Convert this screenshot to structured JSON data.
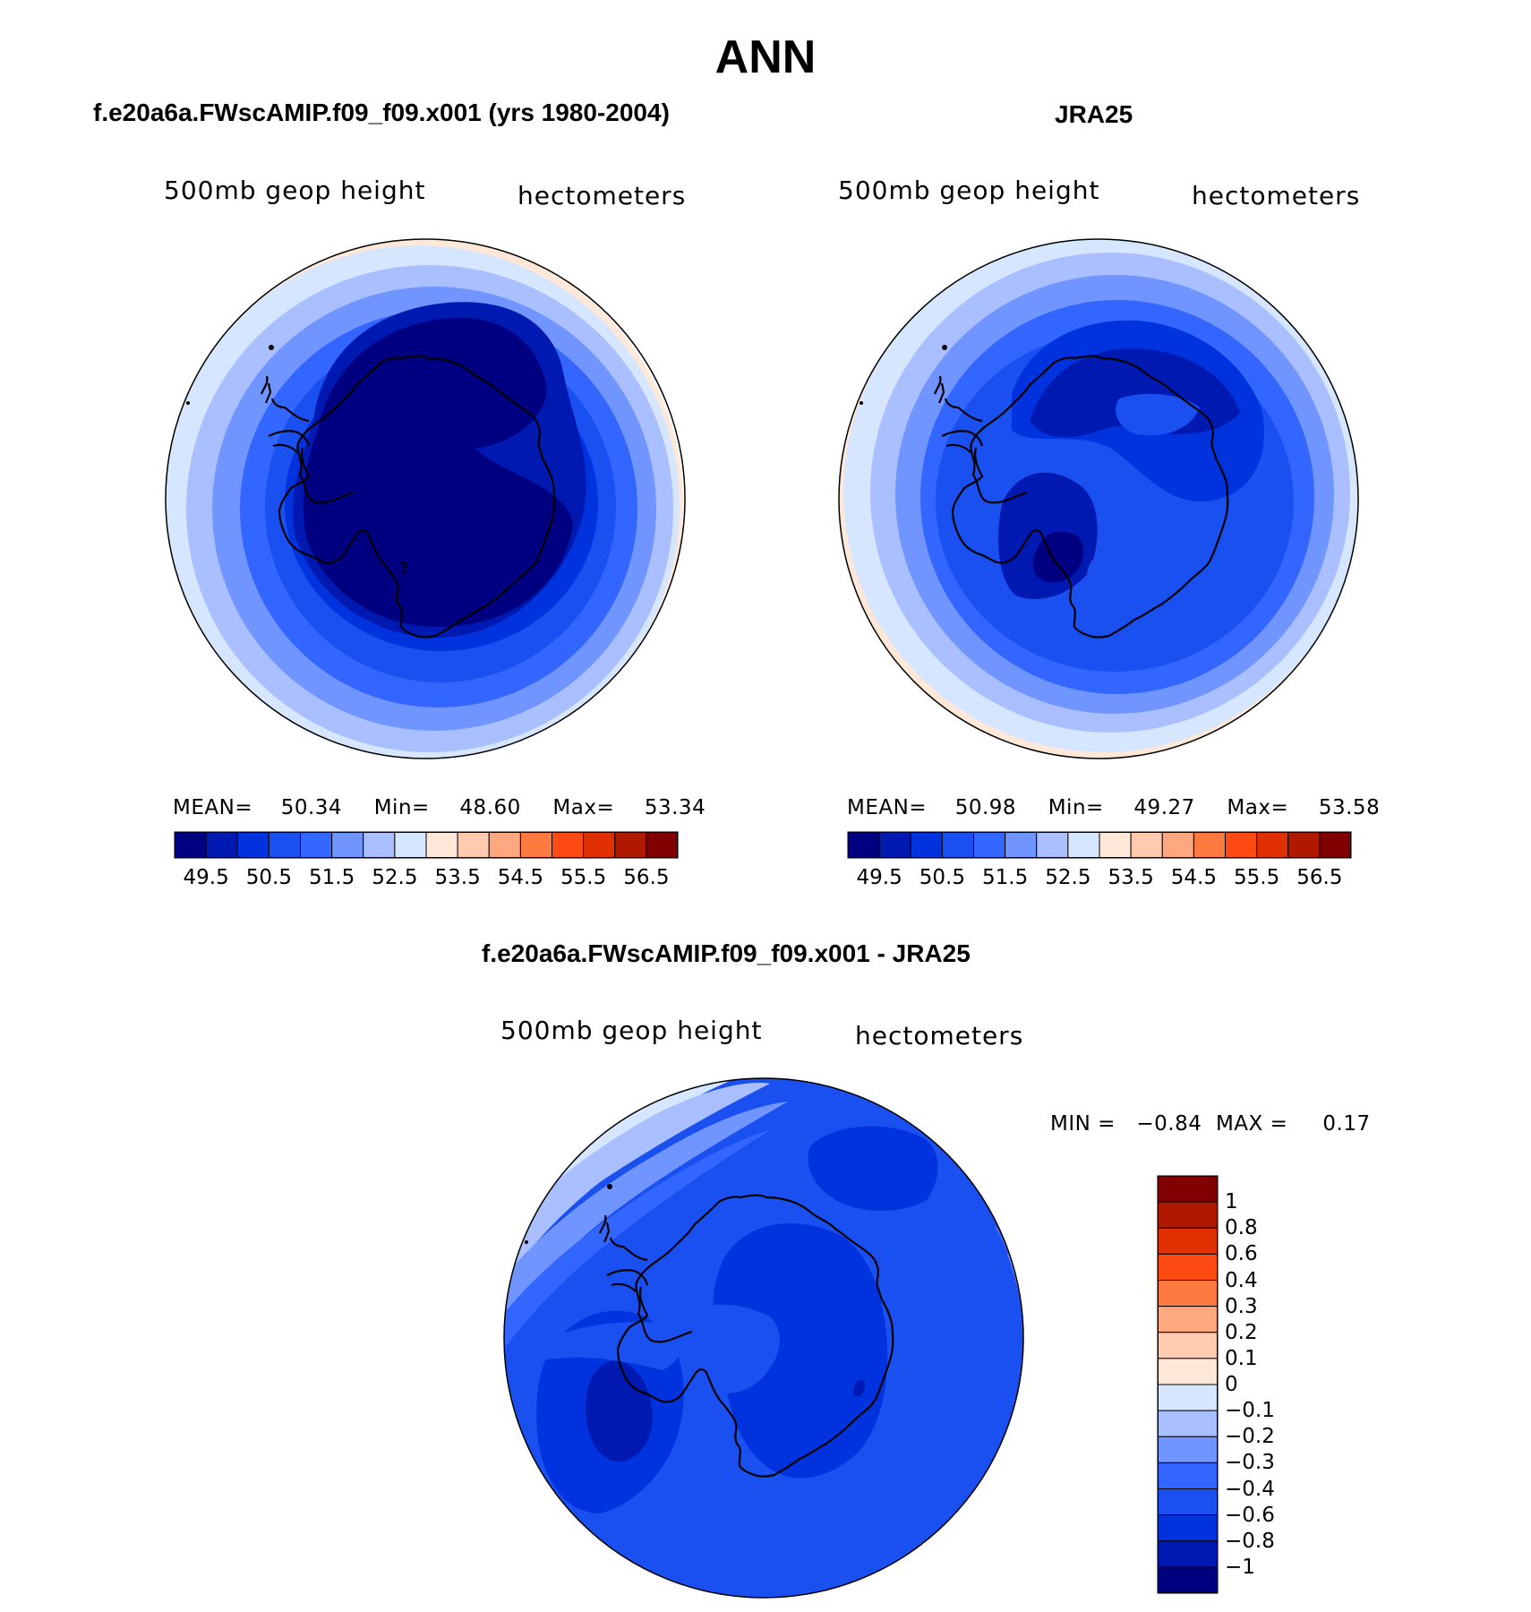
{
  "title": "ANN",
  "panels": {
    "model": {
      "title": "f.e20a6a.FWscAMIP.f09_f09.x001 (yrs 1980-2004)",
      "variable_label": "500mb geop height",
      "units_label": "hectometers",
      "mean_label": "MEAN=",
      "mean_value": "50.34",
      "min_label": "Min=",
      "min_value": "48.60",
      "max_label": "Max=",
      "max_value": "53.34"
    },
    "obs": {
      "title": "JRA25",
      "variable_label": "500mb geop height",
      "units_label": "hectometers",
      "mean_label": "MEAN=",
      "mean_value": "50.98",
      "min_label": "Min=",
      "min_value": "49.27",
      "max_label": "Max=",
      "max_value": "53.58"
    },
    "diff": {
      "title": "f.e20a6a.FWscAMIP.f09_f09.x001 - JRA25",
      "variable_label": "500mb geop height",
      "units_label": "hectometers",
      "minmax_text": "MIN =   −0.84  MAX =     0.17"
    }
  },
  "colorbar_main": {
    "colors": [
      "#000080",
      "#0019b0",
      "#0033dd",
      "#1a4ff0",
      "#3366ff",
      "#7095ff",
      "#aabfff",
      "#d6e6ff",
      "#ffe8d8",
      "#ffcbb0",
      "#ffa880",
      "#ff7a40",
      "#ff4a14",
      "#e03000",
      "#b01800",
      "#800000"
    ],
    "tick_labels": [
      "49.5",
      "50.5",
      "51.5",
      "52.5",
      "53.5",
      "54.5",
      "55.5",
      "56.5"
    ]
  },
  "colorbar_diff": {
    "colors_top_to_bottom": [
      "#800000",
      "#b01800",
      "#e03000",
      "#ff4a14",
      "#ff7a40",
      "#ffa880",
      "#ffcbb0",
      "#ffe8d8",
      "#d6e6ff",
      "#aabfff",
      "#7095ff",
      "#3366ff",
      "#1a4ff0",
      "#0033dd",
      "#0019b0",
      "#000080"
    ],
    "tick_labels_top_to_bottom": [
      "1",
      "0.8",
      "0.6",
      "0.4",
      "0.3",
      "0.2",
      "0.1",
      "0",
      "−0.1",
      "−0.2",
      "−0.3",
      "−0.4",
      "−0.6",
      "−0.8",
      "−1"
    ]
  },
  "maps": {
    "model_rings": [
      "#ffe8d8",
      "#d6e6ff",
      "#aabfff",
      "#7095ff",
      "#3366ff",
      "#1a4ff0",
      "#0033dd",
      "#0019b0",
      "#000080"
    ],
    "obs_rings": [
      "#ffe8d8",
      "#d6e6ff",
      "#aabfff",
      "#7095ff",
      "#3366ff",
      "#1a4ff0",
      "#0033dd"
    ],
    "obs_interior": [
      "#0019b0",
      "#1a4ff0",
      "#000080"
    ],
    "diff_base": "#1a4ff0",
    "diff_features": [
      "#ffe8d8",
      "#d6e6ff",
      "#aabfff",
      "#7095ff",
      "#3366ff",
      "#0033dd",
      "#0019b0"
    ],
    "coastline_color": "#000000"
  }
}
